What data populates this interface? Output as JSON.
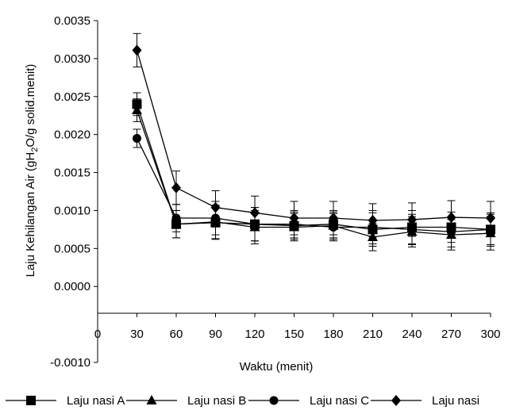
{
  "chart_data": {
    "type": "line",
    "title": "",
    "xlabel": "Waktu (menit)",
    "ylabel": "Laju Kehilangan Air (gH2O/g solid.menit)",
    "ylabel_parts": {
      "pre": "Laju Kehilangan Air (gH",
      "sub1": "2",
      "mid": "O/g solid.menit)"
    },
    "xlim": [
      0,
      300
    ],
    "ylim": [
      -0.001,
      0.0035
    ],
    "xticks": [
      0,
      30,
      60,
      90,
      120,
      150,
      180,
      210,
      240,
      270,
      300
    ],
    "xtick_labels": [
      "0",
      "30",
      "60",
      "90",
      "120",
      "150",
      "180",
      "210",
      "240",
      "270",
      "300"
    ],
    "yticks": [
      -0.001,
      0,
      0.0005,
      0.001,
      0.0015,
      0.002,
      0.0025,
      0.003,
      0.0035
    ],
    "ytick_labels": [
      "-0.0010",
      "0.0000",
      "0.0005",
      "0.0010",
      "0.0015",
      "0.0020",
      "0.0025",
      "0.0030",
      "0.0035"
    ],
    "grid": false,
    "legend_position": "bottom",
    "x": [
      30,
      60,
      90,
      120,
      150,
      180,
      210,
      240,
      270,
      300
    ],
    "series": [
      {
        "name": "Laju nasi A",
        "marker": "square",
        "color": "#000000",
        "values": [
          0.0024,
          0.00082,
          0.00084,
          0.00082,
          0.0008,
          0.00082,
          0.00075,
          0.00078,
          0.00078,
          0.00075
        ],
        "errors": [
          0.00015,
          0.00018,
          0.00022,
          0.00022,
          0.00018,
          0.00018,
          0.00022,
          0.00022,
          0.0002,
          0.00022
        ]
      },
      {
        "name": "Laju nasi B",
        "marker": "triangle",
        "color": "#000000",
        "values": [
          0.00232,
          0.00082,
          0.00085,
          0.00078,
          0.00078,
          0.0008,
          0.00065,
          0.00072,
          0.00068,
          0.0007
        ],
        "errors": [
          0.00015,
          0.00018,
          0.00022,
          0.00022,
          0.00018,
          0.00018,
          0.00018,
          0.0002,
          0.0002,
          0.00022
        ]
      },
      {
        "name": "Laju nasi C",
        "marker": "circle",
        "color": "#000000",
        "values": [
          0.00195,
          0.0009,
          0.0009,
          0.00082,
          0.00082,
          0.00078,
          0.00078,
          0.00075,
          0.00072,
          0.00075
        ],
        "errors": [
          0.00012,
          0.00018,
          0.00022,
          0.00022,
          0.00018,
          0.00018,
          0.00022,
          0.0002,
          0.0002,
          0.0002
        ]
      },
      {
        "name": "Laju nasi",
        "marker": "diamond",
        "color": "#000000",
        "values": [
          0.00311,
          0.0013,
          0.00104,
          0.00097,
          0.0009,
          0.0009,
          0.00087,
          0.00088,
          0.00091,
          0.0009
        ],
        "errors": [
          0.00022,
          0.00022,
          0.00022,
          0.00022,
          0.00022,
          0.00022,
          0.00022,
          0.00022,
          0.00022,
          0.00022
        ]
      }
    ]
  }
}
